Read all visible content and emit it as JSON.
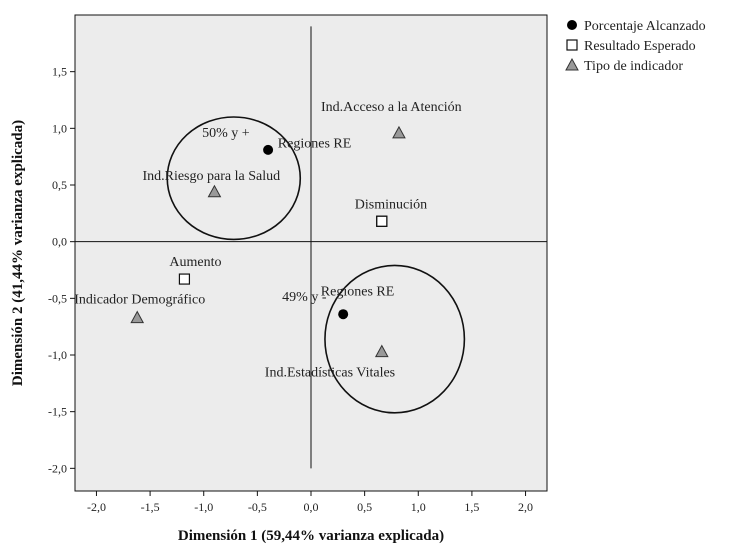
{
  "chart_data": {
    "type": "scatter",
    "title": "",
    "xlabel": "Dimensión 1 (59,44% varianza explicada)",
    "ylabel": "Dimensión 2 (41,44% varianza explicada)",
    "xlim": [
      -2.2,
      2.2
    ],
    "ylim": [
      -2.2,
      2.0
    ],
    "xticks": [
      "-2,0",
      "-1,5",
      "-1,0",
      "-0,5",
      "0,0",
      "0,5",
      "1,0",
      "1,5",
      "2,0"
    ],
    "yticks": [
      "1,5",
      "1,0",
      "0,5",
      "0,0",
      "-0,5",
      "-1,0",
      "-1,5",
      "-2,0"
    ],
    "grid": false,
    "reference_lines": {
      "x": 0,
      "y": 0
    },
    "legend_position": "outside-top-right",
    "background_color": "#ececec",
    "series": [
      {
        "name": "Porcentaje Alcanzado",
        "marker": "filled-circle",
        "points": [
          {
            "label": "50% y +",
            "x": -0.4,
            "y": 0.81
          },
          {
            "label": "49% y -",
            "x": 0.3,
            "y": -0.64
          }
        ]
      },
      {
        "name": "Resultado Esperado",
        "marker": "open-square",
        "points": [
          {
            "label": "Regiones RE",
            "x": 0.66,
            "y": 0.18
          },
          {
            "label": "Disminución",
            "x": 0.66,
            "y": 0.18
          },
          {
            "label": "Aumento",
            "x": -1.18,
            "y": -0.33
          },
          {
            "label": "Regiones RE",
            "x": 0.66,
            "y": 0.18
          }
        ]
      },
      {
        "name": "Tipo de indicador",
        "marker": "triangle",
        "points": [
          {
            "label": "Ind.Acceso a la Atención",
            "x": 0.82,
            "y": 0.96
          },
          {
            "label": "Ind.Riesgo para la Salud",
            "x": -0.9,
            "y": 0.44
          },
          {
            "label": "Indicador Demográfico",
            "x": -1.62,
            "y": -0.67
          },
          {
            "label": "Ind.Estadísticas Vitales",
            "x": 0.66,
            "y": -0.97
          }
        ]
      }
    ],
    "annotations": [
      {
        "shape": "ellipse",
        "cx": -0.72,
        "cy": 0.56,
        "rx": 0.62,
        "ry": 0.54
      },
      {
        "shape": "ellipse",
        "cx": 0.78,
        "cy": -0.86,
        "rx": 0.65,
        "ry": 0.65
      }
    ]
  }
}
